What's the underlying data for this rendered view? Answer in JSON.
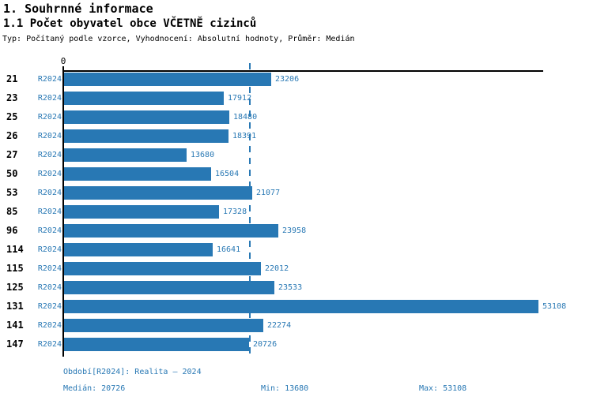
{
  "header": {
    "title": "1. Souhrnné informace",
    "subtitle": "1.1 Počet obyvatel obce VČETNĚ cizinců",
    "meta": "Typ: Počítaný podle vzorce, Vyhodnocení: Absolutní hodnoty, Průměr: Medián"
  },
  "chart_data": {
    "type": "bar",
    "orientation": "horizontal",
    "title": "1.1 Počet obyvatel obce VČETNĚ cizinců",
    "categories": [
      "21",
      "23",
      "25",
      "26",
      "27",
      "50",
      "53",
      "85",
      "96",
      "114",
      "115",
      "125",
      "131",
      "141",
      "147"
    ],
    "series": [
      {
        "name": "R2024",
        "values": [
          23206,
          17912,
          18480,
          18391,
          13680,
          16504,
          21077,
          17328,
          23958,
          16641,
          22012,
          23533,
          53108,
          22274,
          20726
        ]
      }
    ],
    "value_labels_shown": true,
    "axis_origin_label": "0",
    "xlim": [
      0,
      53108
    ],
    "grid": false,
    "median_reference_line": 20726,
    "bar_color": "#2878b4",
    "axis_color": "#000000",
    "stats": {
      "median": 20726,
      "min": 13680,
      "max": 53108
    }
  },
  "footer": {
    "period_label": "Období[R2024]: Realita – 2024",
    "median_label": "Medián: 20726",
    "min_label": "Min: 13680",
    "max_label": "Max: 53108"
  }
}
